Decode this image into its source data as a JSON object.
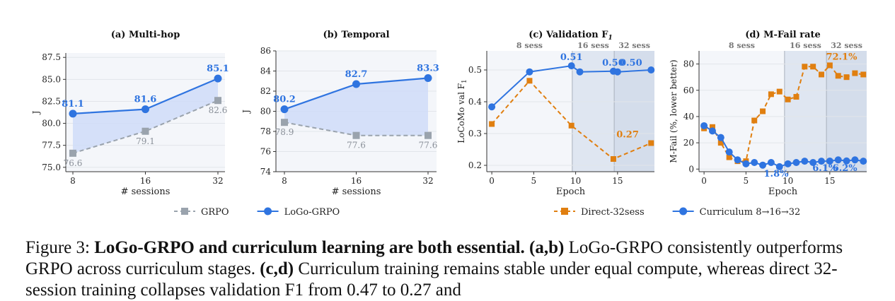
{
  "chart_data": [
    {
      "type": "line",
      "title": "(a) Multi-hop",
      "xlabel": "# sessions",
      "ylabel": "J",
      "x": [
        8,
        16,
        32
      ],
      "xticks": [
        "8",
        "16",
        "32"
      ],
      "ylim": [
        74.5,
        88
      ],
      "yticks": [
        75.0,
        77.5,
        80.0,
        82.5,
        85.0,
        87.5
      ],
      "ytick_labels": [
        "75.0",
        "77.5",
        "80.0",
        "82.5",
        "85.0",
        "87.5"
      ],
      "series": [
        {
          "name": "GRPO",
          "values": [
            76.6,
            79.1,
            82.6
          ],
          "labels": [
            "76.6",
            "79.1",
            "82.6"
          ],
          "color": "#9aa3ad"
        },
        {
          "name": "LoGo-GRPO",
          "values": [
            81.1,
            81.6,
            85.1
          ],
          "labels": [
            "81.1",
            "81.6",
            "85.1"
          ],
          "color": "#2f74e0"
        }
      ]
    },
    {
      "type": "line",
      "title": "(b) Temporal",
      "xlabel": "# sessions",
      "ylabel": "J",
      "x": [
        8,
        16,
        32
      ],
      "xticks": [
        "8",
        "16",
        "32"
      ],
      "ylim": [
        74,
        86
      ],
      "yticks": [
        74,
        76,
        78,
        80,
        82,
        84,
        86
      ],
      "ytick_labels": [
        "74",
        "76",
        "78",
        "80",
        "82",
        "84",
        "86"
      ],
      "series": [
        {
          "name": "GRPO",
          "values": [
            78.9,
            77.6,
            77.6
          ],
          "labels": [
            "78.9",
            "77.6",
            "77.6"
          ],
          "color": "#9aa3ad"
        },
        {
          "name": "LoGo-GRPO",
          "values": [
            80.2,
            82.7,
            83.3
          ],
          "labels": [
            "80.2",
            "82.7",
            "83.3"
          ],
          "color": "#2f74e0"
        }
      ]
    },
    {
      "type": "line",
      "title": "(c) Validation F",
      "title_sub": "1",
      "xlabel": "Epoch",
      "ylabel": "LoCoMo val F",
      "ylabel_sub": "1",
      "xlim": [
        -0.6,
        19.4
      ],
      "xticks": [
        0,
        5,
        10,
        15
      ],
      "ylim": [
        0.18,
        0.56
      ],
      "yticks": [
        0.2,
        0.3,
        0.4,
        0.5
      ],
      "ytick_labels": [
        "0.2",
        "0.3",
        "0.4",
        "0.5"
      ],
      "stages": [
        {
          "label": "8 sess",
          "x0": -0.6,
          "x1": 9.6
        },
        {
          "label": "16 sess",
          "x0": 9.6,
          "x1": 14.6
        },
        {
          "label": "32 sess",
          "x0": 14.6,
          "x1": 19.4
        }
      ],
      "series": [
        {
          "name": "Direct-32sess",
          "x": [
            0,
            4.5,
            9.5,
            14.5,
            19
          ],
          "values": [
            0.33,
            0.466,
            0.325,
            0.22,
            0.27
          ],
          "color": "#e07f10"
        },
        {
          "name": "Curriculum 8→16→32",
          "x": [
            0,
            4.5,
            9.5,
            10.5,
            14.5,
            15,
            19
          ],
          "values": [
            0.384,
            0.494,
            0.513,
            0.494,
            0.496,
            0.494,
            0.5
          ],
          "color": "#2f74e0"
        }
      ],
      "annotations": [
        {
          "text": "0.51",
          "x": 9.5,
          "y": 0.513,
          "color": "#2f74e0"
        },
        {
          "text": "0.50",
          "x": 14.5,
          "y": 0.496,
          "color": "#2f74e0"
        },
        {
          "text": "0.50",
          "x": 16.6,
          "y": 0.496,
          "color": "#2f74e0"
        },
        {
          "text": "0.27",
          "x": 16.2,
          "y": 0.27,
          "color": "#e07f10"
        }
      ]
    },
    {
      "type": "line",
      "title": "(d) M-Fail rate",
      "xlabel": "Epoch",
      "ylabel": "M-Fail (%, lower better)",
      "xlim": [
        -0.6,
        19.4
      ],
      "xticks": [
        0,
        5,
        10,
        15
      ],
      "ylim": [
        -2,
        90
      ],
      "yticks": [
        0,
        20,
        40,
        60,
        80
      ],
      "ytick_labels": [
        "0",
        "20",
        "40",
        "60",
        "80"
      ],
      "stages": [
        {
          "label": "8 sess",
          "x0": -0.6,
          "x1": 9.6
        },
        {
          "label": "16 sess",
          "x0": 9.6,
          "x1": 14.6
        },
        {
          "label": "32 sess",
          "x0": 14.6,
          "x1": 19.4
        }
      ],
      "series": [
        {
          "name": "Direct-32sess",
          "x": [
            0,
            1,
            2,
            3,
            4,
            5,
            6,
            7,
            8,
            9,
            10,
            11,
            12,
            13,
            14,
            15,
            16,
            17,
            18,
            19
          ],
          "values": [
            31,
            32,
            20,
            9,
            6,
            6,
            37,
            44,
            57,
            59,
            53,
            55,
            78,
            78,
            72,
            79,
            71,
            70,
            73,
            72
          ],
          "color": "#e07f10"
        },
        {
          "name": "Curriculum 8→16→32",
          "x": [
            0,
            1,
            2,
            3,
            4,
            5,
            6,
            7,
            8,
            9,
            10,
            11,
            12,
            13,
            14,
            15,
            16,
            17,
            18,
            19
          ],
          "values": [
            33,
            29,
            24,
            13,
            7,
            4,
            5,
            3,
            5,
            1.8,
            4,
            5,
            6,
            5,
            6,
            6.1,
            7,
            6.2,
            7,
            6
          ],
          "color": "#2f74e0"
        }
      ],
      "annotations": [
        {
          "text": "72.1%",
          "x": 16.4,
          "y": 79,
          "color": "#e07f10"
        },
        {
          "text": "1.8%",
          "x": 8.6,
          "y": 1.8,
          "color": "#2f74e0"
        },
        {
          "text": "6.1%",
          "x": 14.4,
          "y": 6.1,
          "color": "#2f74e0"
        },
        {
          "text": "6.2%",
          "x": 16.8,
          "y": 6.2,
          "color": "#2f74e0"
        }
      ]
    }
  ],
  "legend_left": [
    {
      "name": "GRPO",
      "color": "#9aa3ad",
      "marker": "square",
      "dashed": true
    },
    {
      "name": "LoGo-GRPO",
      "color": "#2f74e0",
      "marker": "circle",
      "dashed": false
    }
  ],
  "legend_right": [
    {
      "name": "Direct-32sess",
      "color": "#e07f10",
      "marker": "square",
      "dashed": true
    },
    {
      "name": "Curriculum 8→16→32",
      "color": "#2f74e0",
      "marker": "circle",
      "dashed": false
    }
  ],
  "caption": {
    "prefix": "Figure 3: ",
    "bold1": "LoGo-GRPO and curriculum learning are both essential.",
    "b2": " (a,b)",
    "t2": " LoGo-GRPO consistently outperforms GRPO across curriculum stages.",
    "b3": " (c,d)",
    "t3": " Curriculum training remains stable under equal compute, whereas direct 32-session training collapses validation F1 from 0.47 to 0.27 and"
  }
}
